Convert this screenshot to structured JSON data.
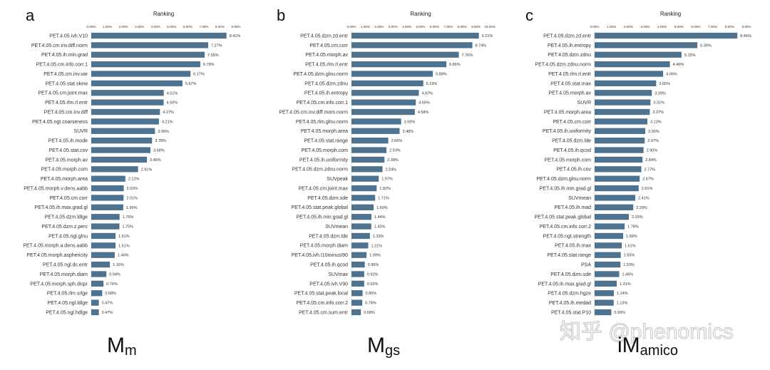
{
  "watermark": "知乎 @phenomics",
  "chart_data": [
    {
      "type": "bar",
      "orientation": "horizontal",
      "panel": "a",
      "title": "Ranking",
      "model_label": {
        "main": "M",
        "sub": "m"
      },
      "xlim": [
        0,
        9
      ],
      "x_ticks": [
        "0.00%",
        "1.00%",
        "2.00%",
        "3.00%",
        "4.00%",
        "5.00%",
        "6.00%",
        "7.00%",
        "8.00%",
        "9.00%"
      ],
      "bar_color": "#4e7390",
      "categories": [
        "PET.4.05.ivh.V10",
        "PET.4.05.cm.inv.diff.norm",
        "PET.4.05.ih.min.grad",
        "PET.4.05.cm.info.corr.1",
        "PET.4.05.cm.inv.var",
        "PET.4.05.stat.skew",
        "PET.4.05.cm.joint.max",
        "PET.4.05.rlm.rl.entr",
        "PET.4.05.cm.inv.diff",
        "PET.4.05.ngt.coarseness",
        "SUVR",
        "PET.4.05.ih.mode",
        "PET.4.05.stat.cov",
        "PET.4.05.morph.av",
        "PET.4.05.morph.com",
        "PET.4.05.morph.area",
        "PET.4.05.morph.v.dens.aabb",
        "PET.4.05.cm.corr",
        "PET.4.05.ih.max.grad.gl",
        "PET.4.05.dzm.ldlge",
        "PET.4.05.dzm.z.perc",
        "PET.4.05.ngl.glnu",
        "PET.4.05.morph.a.dens.aabb",
        "PET.4.05.morph.asphericity",
        "PET.4.05.ngl.dc.entr",
        "PET.4.05.morph.diam",
        "PET.4.05.morph.sph.dispr",
        "PET.4.05.rlm.srlge",
        "PET.4.05.ngl.ldlge",
        "PET.4.05.ngl.hdlge"
      ],
      "values": [
        8.41,
        7.27,
        7.05,
        6.78,
        6.17,
        5.67,
        4.51,
        4.5,
        4.27,
        4.21,
        3.96,
        3.78,
        3.68,
        3.46,
        2.91,
        2.12,
        2.02,
        2.01,
        1.99,
        1.76,
        1.75,
        1.51,
        1.51,
        1.46,
        1.16,
        0.94,
        0.76,
        0.68,
        0.47,
        0.47
      ]
    },
    {
      "type": "bar",
      "orientation": "horizontal",
      "panel": "b",
      "title": "Ranking",
      "model_label": {
        "main": "M",
        "sub": "gs"
      },
      "xlim": [
        0,
        10
      ],
      "x_ticks": [
        "0.00%",
        "1.00%",
        "2.00%",
        "3.00%",
        "4.00%",
        "5.00%",
        "6.00%",
        "7.00%",
        "8.00%",
        "9.00%",
        "10.00%"
      ],
      "bar_color": "#4e7390",
      "categories": [
        "PET.4.05.dzm.zd.entr",
        "PET.4.05.cm.corr",
        "PET.4.05.morph.av",
        "PET.4.05.rlm.rl.entr",
        "PET.4.05.dzm.glnu.norm",
        "PET.4.05.dzm.zdnu",
        "PET.4.05.ih.entropy",
        "PET.4.05.cm.info.corr.1",
        "PET.4.05.cm.inv.diff.mom.norm",
        "PET.4.05.rlm.glnu.norm",
        "PET.4.05.morph.area",
        "PET.4.05.stat.range",
        "PET.4.05.morph.com",
        "PET.4.05.ih.uniformity",
        "PET.4.05.dzm.zdnu.norm",
        "SUVpeak",
        "PET.4.05.cm.joint.max",
        "PET.4.05.dzm.sde",
        "PET.4.05.stat.peak.global",
        "PET.4.05.ih.min.grad.gl",
        "SUVmean",
        "PET.4.05.dzm.lde",
        "PET.4.05.morph.diam",
        "PET.4.05.ivh.I10minusI90",
        "PET.4.05.ih.qcod",
        "SUVmax",
        "PET.4.05.ivh.V90",
        "PET.4.05.stat.peak.local",
        "PET.4.05.cm.info.corr.2",
        "PET.4.05.cm.sum.entr"
      ],
      "values": [
        9.21,
        8.74,
        7.76,
        6.86,
        5.88,
        5.19,
        4.87,
        4.65,
        4.58,
        3.59,
        3.48,
        2.66,
        2.53,
        2.38,
        2.24,
        1.97,
        1.82,
        1.71,
        1.6,
        1.44,
        1.43,
        1.33,
        1.21,
        1.09,
        0.96,
        0.92,
        0.92,
        0.8,
        0.78,
        0.68
      ]
    },
    {
      "type": "bar",
      "orientation": "horizontal",
      "panel": "c",
      "title": "Ranking",
      "model_label": {
        "main": "iM",
        "sub": "amico"
      },
      "xlim": [
        0,
        9
      ],
      "x_ticks": [
        "0.00%",
        "1.00%",
        "2.00%",
        "3.00%",
        "4.00%",
        "5.00%",
        "6.00%",
        "7.00%",
        "8.00%",
        "9.00%"
      ],
      "bar_color": "#4e7390",
      "categories": [
        "PET.4.05.dzm.zd.entr",
        "PET.4.05.ih.entropy",
        "PET.4.05.dzm.zdnu",
        "PET.4.05.dzm.zdnu.norm",
        "PET.4.05.rlm.rl.entr",
        "PET.4.05.stat.max",
        "PET.4.05.morph.av",
        "SUVR",
        "PET.4.05.morph.area",
        "PET.4.05.cm.corr",
        "PET.4.05.ih.uniformity",
        "PET.4.05.dzm.lde",
        "PET.4.05.ih.qcod",
        "PET.4.05.morph.com",
        "PET.4.05.ih.cov",
        "PET.4.05.dzm.glnu.norm",
        "PET.4.05.ih.min.grad.gl",
        "SUVmean",
        "PET.4.05.ih.mad",
        "PET.4.05.stat.peak.global",
        "PET.4.05.cm.info.corr.2",
        "PET.4.05.ngt.strength",
        "PET.4.05.ih.max",
        "PET.4.05.stat.range",
        "PSA",
        "PET.4.05.dzm.sde",
        "PET.4.05.ih.max.grad.gl",
        "PET.4.05.dzm.hgze",
        "PET.4.05.ih.medad",
        "PET.4.05.stat.P10"
      ],
      "values": [
        8.46,
        6.09,
        5.15,
        4.46,
        4.06,
        3.65,
        3.39,
        3.31,
        3.27,
        3.13,
        3.0,
        2.97,
        2.9,
        2.84,
        2.77,
        2.67,
        2.61,
        2.41,
        2.29,
        2.03,
        1.78,
        1.69,
        1.61,
        1.55,
        1.53,
        1.46,
        1.31,
        1.14,
        1.13,
        0.99
      ]
    }
  ]
}
